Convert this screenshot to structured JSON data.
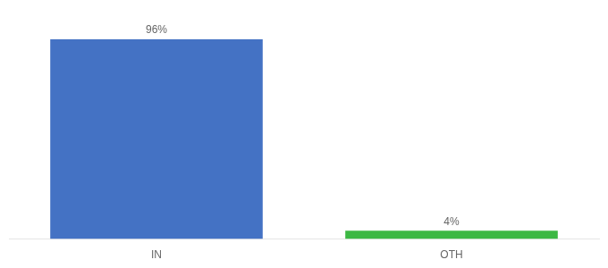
{
  "chart_data": {
    "type": "bar",
    "categories": [
      "IN",
      "OTH"
    ],
    "values": [
      96,
      4
    ],
    "value_labels": [
      "96%",
      "4%"
    ],
    "colors": [
      "#4472c4",
      "#3cb843"
    ],
    "ylim": [
      0,
      108
    ],
    "data_labels": true,
    "tick_labels": "x",
    "grid": false
  }
}
